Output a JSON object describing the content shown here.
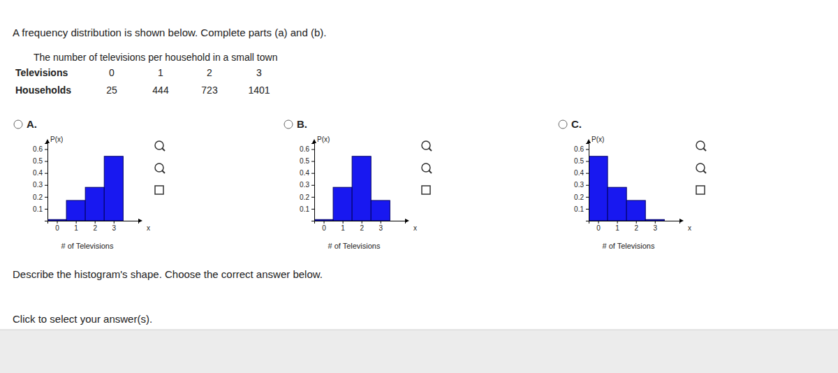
{
  "header": {
    "instruction": "A frequency distribution is shown below. Complete parts (a) and (b)."
  },
  "table": {
    "title": "The number of televisions per household in a small town",
    "row_labels": [
      "Televisions",
      "Households"
    ],
    "televisions": [
      0,
      1,
      2,
      3
    ],
    "households": [
      25,
      444,
      723,
      1401
    ]
  },
  "options": [
    "A.",
    "B.",
    "C."
  ],
  "question": "Describe the histogram's shape. Choose the correct answer below.",
  "prompt": "Click to select your answer(s).",
  "chart_data": [
    {
      "type": "histogram",
      "bins": [
        -0.5,
        0.5,
        1.5,
        2.5,
        3.5
      ],
      "values": [
        0.01,
        0.17,
        0.28,
        0.54
      ],
      "color": "#1818f0",
      "xlim": [
        -0.5,
        4.3
      ],
      "ylim": [
        0,
        0.65
      ],
      "xticks": [
        0,
        1,
        2,
        3
      ],
      "yticks": [
        0.1,
        0.2,
        0.3,
        0.4,
        0.5,
        0.6
      ],
      "x_label": "# of Televisions",
      "y_label": "P(x)",
      "x_symbol": "x"
    },
    {
      "type": "histogram",
      "bins": [
        -0.5,
        0.5,
        1.5,
        2.5,
        3.5
      ],
      "values": [
        0.01,
        0.28,
        0.54,
        0.17
      ],
      "color": "#1818f0",
      "xlim": [
        -0.5,
        4.3
      ],
      "ylim": [
        0,
        0.65
      ],
      "xticks": [
        0,
        1,
        2,
        3
      ],
      "yticks": [
        0.1,
        0.2,
        0.3,
        0.4,
        0.5,
        0.6
      ],
      "x_label": "# of Televisions",
      "y_label": "P(x)",
      "x_symbol": "x"
    },
    {
      "type": "histogram",
      "bins": [
        -0.5,
        0.5,
        1.5,
        2.5,
        3.5
      ],
      "values": [
        0.54,
        0.28,
        0.17,
        0.01
      ],
      "color": "#1818f0",
      "xlim": [
        -0.5,
        4.3
      ],
      "ylim": [
        0,
        0.65
      ],
      "xticks": [
        0,
        1,
        2,
        3
      ],
      "yticks": [
        0.1,
        0.2,
        0.3,
        0.4,
        0.5,
        0.6
      ],
      "x_label": "# of Televisions",
      "y_label": "P(x)",
      "x_symbol": "x"
    }
  ]
}
